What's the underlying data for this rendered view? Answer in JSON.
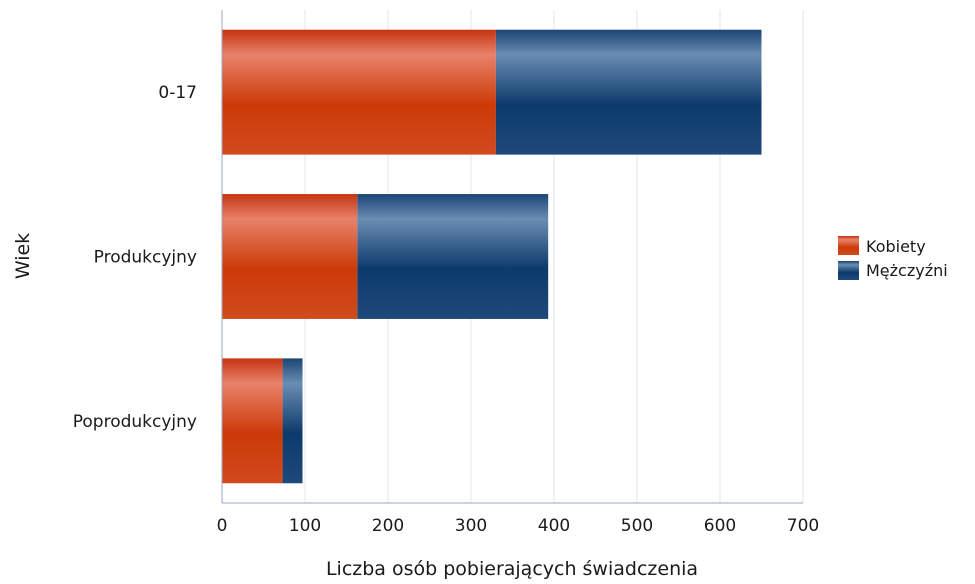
{
  "chart_data": {
    "type": "bar",
    "orientation": "horizontal",
    "stacked": true,
    "categories": [
      "0-17",
      "Produkcyjny",
      "Poprodukcyjny"
    ],
    "series": [
      {
        "name": "Kobiety",
        "values": [
          330,
          163,
          73
        ],
        "color": "#cc3a10"
      },
      {
        "name": "Mężczyźni",
        "values": [
          320,
          230,
          24
        ],
        "color": "#0f3c6e"
      }
    ],
    "xlabel": "Liczba osób pobierających świadczenia",
    "ylabel": "Wiek",
    "xlim": [
      0,
      700
    ],
    "xticks": [
      0,
      100,
      200,
      300,
      400,
      500,
      600,
      700
    ],
    "grid": true,
    "legend_position": "right"
  }
}
